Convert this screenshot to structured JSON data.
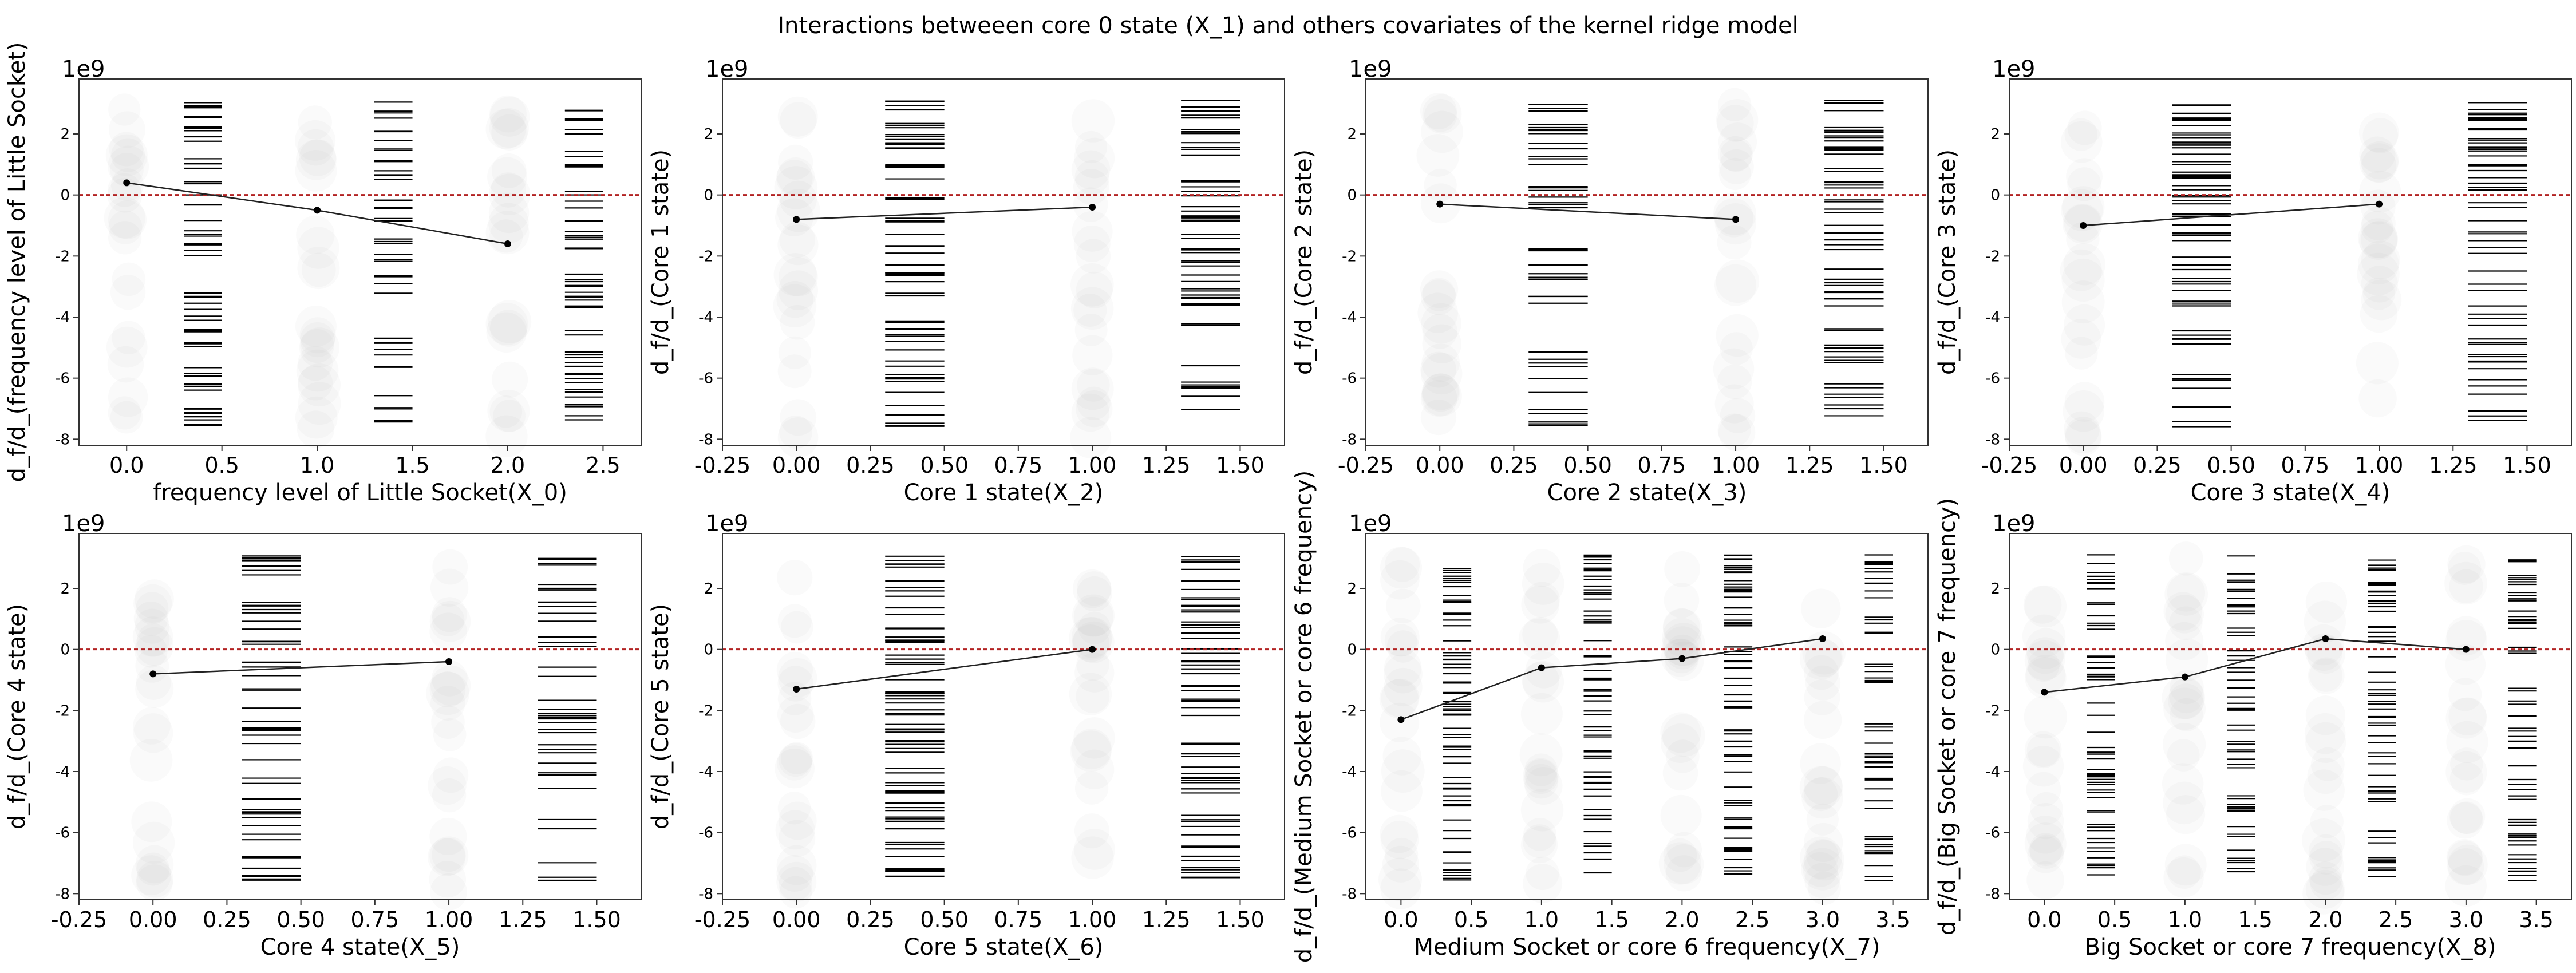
{
  "figure": {
    "title": "Interactions betweeen core 0 state (X_1)  and others covariates of the kernel ridge model"
  },
  "chart_data": [
    {
      "type": "scatter",
      "xlabel": "frequency level of Little Socket(X_0)",
      "ylabel": "d_f/d_(frequency level of Little Socket)",
      "y_scale_label": "1e9",
      "xlim": [
        -0.25,
        2.7
      ],
      "ylim": [
        -8.2,
        3.8
      ],
      "xticks": [
        0.0,
        0.5,
        1.0,
        1.5,
        2.0,
        2.5
      ],
      "yticks": [
        -8,
        -6,
        -4,
        -2,
        0,
        2
      ],
      "reference_line": 0,
      "mean_line": {
        "x": [
          0.0,
          1.0,
          2.0
        ],
        "y": [
          0.4,
          -0.5,
          -1.6
        ]
      },
      "value_groups": [
        0,
        1,
        2
      ],
      "rug_positions": [
        0.4,
        1.4,
        2.4
      ]
    },
    {
      "type": "scatter",
      "xlabel": "Core 1 state(X_2)",
      "ylabel": "d_f/d_(Core 1 state)",
      "y_scale_label": "1e9",
      "xlim": [
        -0.25,
        1.65
      ],
      "ylim": [
        -8.2,
        3.8
      ],
      "xticks": [
        -0.25,
        0.0,
        0.25,
        0.5,
        0.75,
        1.0,
        1.25,
        1.5
      ],
      "yticks": [
        -8,
        -6,
        -4,
        -2,
        0,
        2
      ],
      "reference_line": 0,
      "mean_line": {
        "x": [
          0.0,
          1.0
        ],
        "y": [
          -0.8,
          -0.4
        ]
      },
      "value_groups": [
        0,
        1
      ],
      "rug_positions": [
        0.4,
        1.4
      ]
    },
    {
      "type": "scatter",
      "xlabel": "Core 2 state(X_3)",
      "ylabel": "d_f/d_(Core 2 state)",
      "y_scale_label": "1e9",
      "xlim": [
        -0.25,
        1.65
      ],
      "ylim": [
        -8.2,
        3.8
      ],
      "xticks": [
        -0.25,
        0.0,
        0.25,
        0.5,
        0.75,
        1.0,
        1.25,
        1.5
      ],
      "yticks": [
        -8,
        -6,
        -4,
        -2,
        0,
        2
      ],
      "reference_line": 0,
      "mean_line": {
        "x": [
          0.0,
          1.0
        ],
        "y": [
          -0.3,
          -0.8
        ]
      },
      "value_groups": [
        0,
        1
      ],
      "rug_positions": [
        0.4,
        1.4
      ]
    },
    {
      "type": "scatter",
      "xlabel": "Core 3 state(X_4)",
      "ylabel": "d_f/d_(Core 3 state)",
      "y_scale_label": "1e9",
      "xlim": [
        -0.25,
        1.65
      ],
      "ylim": [
        -8.2,
        3.8
      ],
      "xticks": [
        -0.25,
        0.0,
        0.25,
        0.5,
        0.75,
        1.0,
        1.25,
        1.5
      ],
      "yticks": [
        -8,
        -6,
        -4,
        -2,
        0,
        2
      ],
      "reference_line": 0,
      "mean_line": {
        "x": [
          0.0,
          1.0
        ],
        "y": [
          -1.0,
          -0.3
        ]
      },
      "value_groups": [
        0,
        1
      ],
      "rug_positions": [
        0.4,
        1.4
      ]
    },
    {
      "type": "scatter",
      "xlabel": "Core 4 state(X_5)",
      "ylabel": "d_f/d_(Core 4 state)",
      "y_scale_label": "1e9",
      "xlim": [
        -0.25,
        1.65
      ],
      "ylim": [
        -8.2,
        3.8
      ],
      "xticks": [
        -0.25,
        0.0,
        0.25,
        0.5,
        0.75,
        1.0,
        1.25,
        1.5
      ],
      "yticks": [
        -8,
        -6,
        -4,
        -2,
        0,
        2
      ],
      "reference_line": 0,
      "mean_line": {
        "x": [
          0.0,
          1.0
        ],
        "y": [
          -0.8,
          -0.4
        ]
      },
      "value_groups": [
        0,
        1
      ],
      "rug_positions": [
        0.4,
        1.4
      ]
    },
    {
      "type": "scatter",
      "xlabel": "Core 5 state(X_6)",
      "ylabel": "d_f/d_(Core 5 state)",
      "y_scale_label": "1e9",
      "xlim": [
        -0.25,
        1.65
      ],
      "ylim": [
        -8.2,
        3.8
      ],
      "xticks": [
        -0.25,
        0.0,
        0.25,
        0.5,
        0.75,
        1.0,
        1.25,
        1.5
      ],
      "yticks": [
        -8,
        -6,
        -4,
        -2,
        0,
        2
      ],
      "reference_line": 0,
      "mean_line": {
        "x": [
          0.0,
          1.0
        ],
        "y": [
          -1.3,
          0.0
        ]
      },
      "value_groups": [
        0,
        1
      ],
      "rug_positions": [
        0.4,
        1.4
      ]
    },
    {
      "type": "scatter",
      "xlabel": "Medium Socket or core 6 frequency(X_7)",
      "ylabel": "d_f/d_(Medium Socket or core 6 frequency)",
      "y_scale_label": "1e9",
      "xlim": [
        -0.25,
        3.75
      ],
      "ylim": [
        -8.2,
        3.8
      ],
      "xticks": [
        0.0,
        0.5,
        1.0,
        1.5,
        2.0,
        2.5,
        3.0,
        3.5
      ],
      "yticks": [
        -8,
        -6,
        -4,
        -2,
        0,
        2
      ],
      "reference_line": 0,
      "mean_line": {
        "x": [
          0.0,
          1.0,
          2.0,
          3.0
        ],
        "y": [
          -2.3,
          -0.6,
          -0.3,
          0.35
        ]
      },
      "value_groups": [
        0,
        1,
        2,
        3
      ],
      "rug_positions": [
        0.4,
        1.4,
        2.4,
        3.4
      ]
    },
    {
      "type": "scatter",
      "xlabel": "Big Socket or core 7 frequency(X_8)",
      "ylabel": "d_f/d_(Big Socket or core 7 frequency)",
      "y_scale_label": "1e9",
      "xlim": [
        -0.25,
        3.75
      ],
      "ylim": [
        -8.2,
        3.8
      ],
      "xticks": [
        0.0,
        0.5,
        1.0,
        1.5,
        2.0,
        2.5,
        3.0,
        3.5
      ],
      "yticks": [
        -8,
        -6,
        -4,
        -2,
        0,
        2
      ],
      "reference_line": 0,
      "mean_line": {
        "x": [
          0.0,
          1.0,
          2.0,
          3.0
        ],
        "y": [
          -1.4,
          -0.9,
          0.35,
          0.0
        ]
      },
      "value_groups": [
        0,
        1,
        2,
        3
      ],
      "rug_positions": [
        0.4,
        1.4,
        2.4,
        3.4
      ]
    }
  ]
}
